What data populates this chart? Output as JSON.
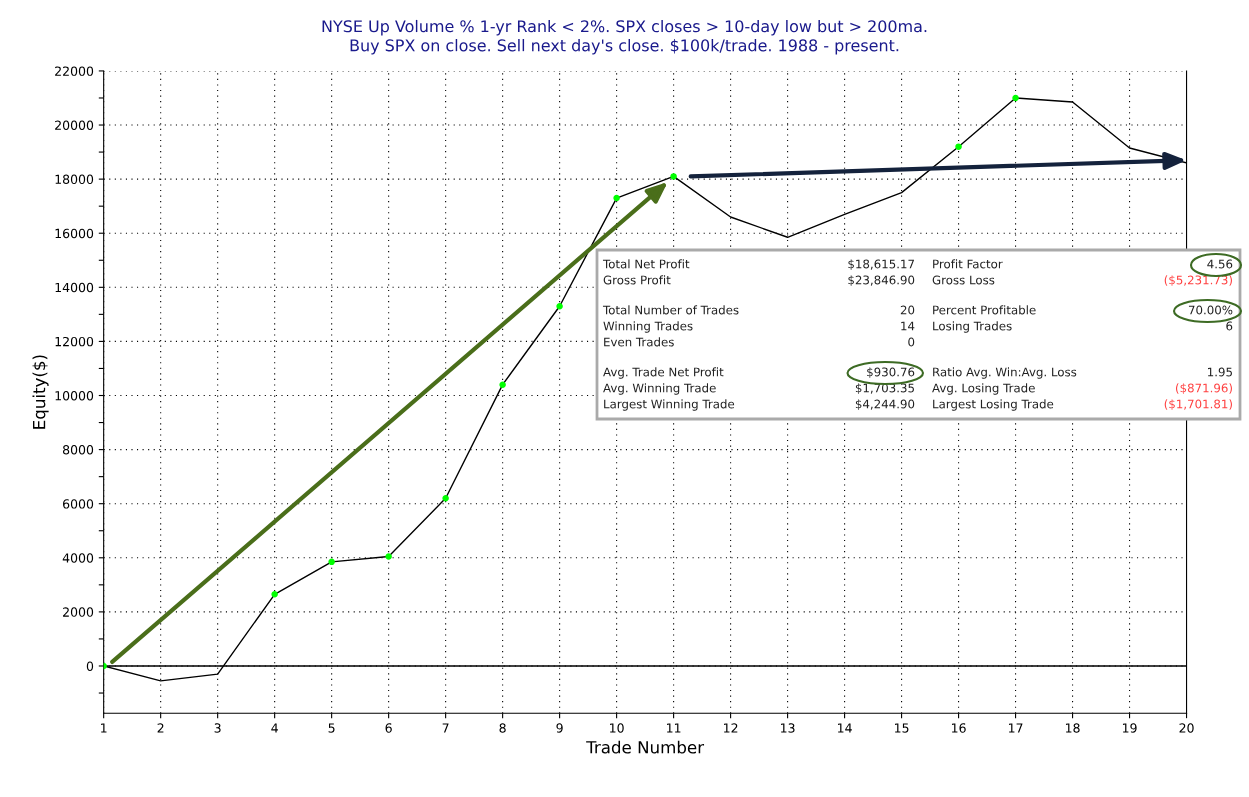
{
  "chart_data": {
    "type": "line",
    "title": "NYSE Up Volume % 1-yr Rank < 2%. SPX closes > 10-day low but > 200ma.\nBuy SPX on close. Sell next day's close. $100k/trade. 1988 - present.",
    "xlabel": "Trade Number",
    "ylabel": "Equity($)",
    "x": [
      1,
      2,
      3,
      4,
      5,
      6,
      7,
      8,
      9,
      10,
      11,
      12,
      13,
      14,
      15,
      16,
      17,
      18,
      19,
      20
    ],
    "series": [
      {
        "color": "#000000",
        "values": [
          0,
          -550,
          -300,
          2650,
          3850,
          4050,
          6200,
          10400,
          13300,
          17300,
          18100,
          16600,
          15850,
          16700,
          17500,
          19200,
          21000,
          20850,
          19150,
          18600
        ]
      },
      {
        "type": "scatter",
        "color": "#00ff00",
        "x": [
          1,
          4,
          5,
          6,
          7,
          8,
          9,
          10,
          11,
          16,
          17
        ],
        "values": [
          0,
          2650,
          3850,
          4050,
          6200,
          10400,
          13300,
          17300,
          18100,
          19200,
          21000
        ]
      }
    ],
    "xlim": [
      1,
      20
    ],
    "xticks": [
      1,
      2,
      3,
      4,
      5,
      6,
      7,
      8,
      9,
      10,
      11,
      12,
      13,
      14,
      15,
      16,
      17,
      18,
      19,
      20
    ],
    "ylim": [
      -1750,
      22000
    ],
    "yticks": [
      {
        "value": -1000,
        "label": null
      },
      0,
      {
        "value": 1000,
        "label": null
      },
      2000,
      {
        "value": 3000,
        "label": null
      },
      4000,
      {
        "value": 5000,
        "label": null
      },
      6000,
      {
        "value": 7000,
        "label": null
      },
      8000,
      {
        "value": 9000,
        "label": null
      },
      10000,
      {
        "value": 11000,
        "label": null
      },
      12000,
      {
        "value": 13000,
        "label": null
      },
      14000,
      {
        "value": 15000,
        "label": null
      },
      16000,
      {
        "value": 17000,
        "label": null
      },
      18000,
      {
        "value": 19000,
        "label": null
      },
      20000,
      {
        "value": 21000,
        "label": null
      },
      22000
    ],
    "ref_lines": [
      {
        "axis": "y",
        "value": 0,
        "color": "#000000"
      }
    ],
    "grid": true,
    "line_style": "solid",
    "annotations": [
      "Total Net Profit",
      "$18,615.17",
      "Profit Factor",
      "4.56",
      "Gross Profit",
      "$23,846.90",
      "Gross Loss",
      "($5,231.73)",
      "Total Number of Trades",
      "20",
      "Percent Profitable",
      "70.00%",
      "Winning Trades",
      "14",
      "Losing Trades",
      "6",
      "Even Trades",
      "0",
      "Avg. Trade Net Profit",
      "$930.76",
      "Ratio Avg. Win:Avg. Loss",
      "1.95",
      "Avg. Winning Trade",
      "$1,703.35",
      "Avg. Losing Trade",
      "($871.96)",
      "Largest Winning Trade",
      "$4,244.90",
      "Largest Losing Trade",
      "($1,701.81)"
    ]
  }
}
